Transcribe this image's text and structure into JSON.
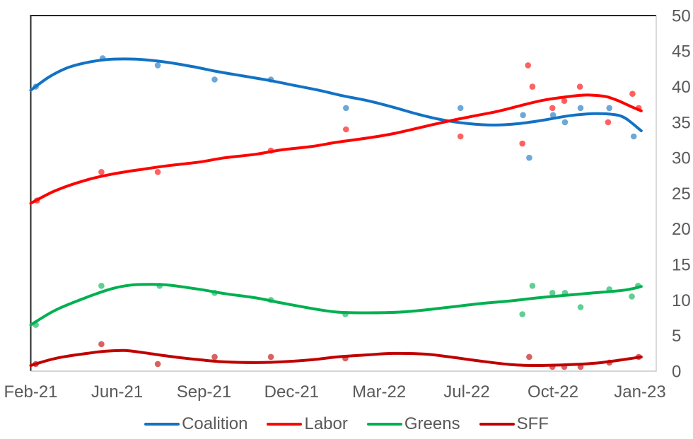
{
  "chart_data": {
    "type": "line",
    "title": "",
    "xlabel": "",
    "ylabel": "",
    "grid": false,
    "legend_position": "bottom",
    "x_axis": {
      "tick_labels": [
        "Feb-21",
        "Jun-21",
        "Sep-21",
        "Dec-21",
        "Mar-22",
        "Jul-22",
        "Oct-22",
        "Jan-23"
      ],
      "tick_positions": [
        0.0,
        0.138,
        0.277,
        0.417,
        0.557,
        0.697,
        0.835,
        0.974
      ],
      "range_note": "x stored as fraction 0-1 across plot width, Feb-21 to Jan-23"
    },
    "y_axis": {
      "min": 0,
      "max": 50,
      "step": 5,
      "tick_labels": [
        "0",
        "5",
        "10",
        "15",
        "20",
        "25",
        "30",
        "35",
        "40",
        "45",
        "50"
      ],
      "side": "right"
    },
    "series": [
      {
        "name": "Coalition",
        "color": "#1272C4",
        "trend": [
          [
            0,
            39.5
          ],
          [
            0.03,
            41.4
          ],
          [
            0.06,
            42.7
          ],
          [
            0.09,
            43.4
          ],
          [
            0.12,
            43.8
          ],
          [
            0.15,
            43.9
          ],
          [
            0.18,
            43.8
          ],
          [
            0.22,
            43.4
          ],
          [
            0.26,
            42.8
          ],
          [
            0.3,
            42.1
          ],
          [
            0.34,
            41.5
          ],
          [
            0.38,
            40.9
          ],
          [
            0.42,
            40.2
          ],
          [
            0.46,
            39.5
          ],
          [
            0.5,
            38.7
          ],
          [
            0.54,
            38.0
          ],
          [
            0.58,
            37.1
          ],
          [
            0.62,
            36.1
          ],
          [
            0.66,
            35.3
          ],
          [
            0.7,
            34.8
          ],
          [
            0.74,
            34.6
          ],
          [
            0.78,
            34.8
          ],
          [
            0.82,
            35.3
          ],
          [
            0.86,
            35.9
          ],
          [
            0.9,
            36.2
          ],
          [
            0.93,
            36.1
          ],
          [
            0.95,
            35.6
          ],
          [
            0.976,
            33.8
          ]
        ],
        "points": [
          [
            0.008,
            40
          ],
          [
            0.115,
            44
          ],
          [
            0.203,
            43
          ],
          [
            0.294,
            41
          ],
          [
            0.384,
            41
          ],
          [
            0.504,
            37
          ],
          [
            0.687,
            37
          ],
          [
            0.787,
            36
          ],
          [
            0.797,
            30
          ],
          [
            0.835,
            36
          ],
          [
            0.854,
            35
          ],
          [
            0.879,
            37
          ],
          [
            0.925,
            37
          ],
          [
            0.964,
            33
          ]
        ]
      },
      {
        "name": "Labor",
        "color": "#FF0000",
        "trend": [
          [
            0,
            23.6
          ],
          [
            0.04,
            25.4
          ],
          [
            0.09,
            26.9
          ],
          [
            0.13,
            27.7
          ],
          [
            0.18,
            28.4
          ],
          [
            0.22,
            28.9
          ],
          [
            0.27,
            29.4
          ],
          [
            0.31,
            30.0
          ],
          [
            0.36,
            30.5
          ],
          [
            0.4,
            31.1
          ],
          [
            0.45,
            31.6
          ],
          [
            0.49,
            32.2
          ],
          [
            0.54,
            32.8
          ],
          [
            0.58,
            33.4
          ],
          [
            0.63,
            34.4
          ],
          [
            0.67,
            35.2
          ],
          [
            0.71,
            35.9
          ],
          [
            0.75,
            36.6
          ],
          [
            0.79,
            37.5
          ],
          [
            0.82,
            38.1
          ],
          [
            0.85,
            38.5
          ],
          [
            0.88,
            38.8
          ],
          [
            0.9,
            38.8
          ],
          [
            0.92,
            38.6
          ],
          [
            0.94,
            38.0
          ],
          [
            0.96,
            37.2
          ],
          [
            0.976,
            36.6
          ]
        ],
        "points": [
          [
            0.01,
            24
          ],
          [
            0.113,
            28
          ],
          [
            0.203,
            28
          ],
          [
            0.384,
            31
          ],
          [
            0.504,
            34
          ],
          [
            0.687,
            33
          ],
          [
            0.786,
            32
          ],
          [
            0.795,
            43
          ],
          [
            0.802,
            40
          ],
          [
            0.834,
            37
          ],
          [
            0.853,
            38
          ],
          [
            0.878,
            40
          ],
          [
            0.923,
            35
          ],
          [
            0.962,
            39
          ],
          [
            0.972,
            37
          ]
        ]
      },
      {
        "name": "Greens",
        "color": "#00B050",
        "trend": [
          [
            0,
            6.5
          ],
          [
            0.04,
            8.6
          ],
          [
            0.09,
            10.4
          ],
          [
            0.13,
            11.6
          ],
          [
            0.16,
            12.1
          ],
          [
            0.19,
            12.2
          ],
          [
            0.22,
            12.1
          ],
          [
            0.27,
            11.5
          ],
          [
            0.31,
            10.9
          ],
          [
            0.36,
            10.3
          ],
          [
            0.4,
            9.6
          ],
          [
            0.45,
            8.8
          ],
          [
            0.49,
            8.3
          ],
          [
            0.54,
            8.2
          ],
          [
            0.59,
            8.3
          ],
          [
            0.63,
            8.6
          ],
          [
            0.67,
            9.0
          ],
          [
            0.72,
            9.5
          ],
          [
            0.77,
            9.9
          ],
          [
            0.81,
            10.3
          ],
          [
            0.86,
            10.7
          ],
          [
            0.9,
            11.0
          ],
          [
            0.95,
            11.4
          ],
          [
            0.976,
            11.9
          ]
        ],
        "points": [
          [
            0.008,
            6.5
          ],
          [
            0.113,
            12
          ],
          [
            0.206,
            12
          ],
          [
            0.294,
            11
          ],
          [
            0.384,
            10
          ],
          [
            0.503,
            8
          ],
          [
            0.786,
            8
          ],
          [
            0.802,
            12
          ],
          [
            0.834,
            11
          ],
          [
            0.854,
            11
          ],
          [
            0.879,
            9
          ],
          [
            0.925,
            11.5
          ],
          [
            0.961,
            10.5
          ],
          [
            0.971,
            12
          ]
        ]
      },
      {
        "name": "SFF",
        "color": "#C00000",
        "trend": [
          [
            0,
            0.8
          ],
          [
            0.04,
            1.8
          ],
          [
            0.09,
            2.5
          ],
          [
            0.12,
            2.8
          ],
          [
            0.15,
            2.9
          ],
          [
            0.18,
            2.6
          ],
          [
            0.22,
            2.1
          ],
          [
            0.27,
            1.6
          ],
          [
            0.31,
            1.3
          ],
          [
            0.36,
            1.2
          ],
          [
            0.4,
            1.3
          ],
          [
            0.45,
            1.6
          ],
          [
            0.49,
            2.0
          ],
          [
            0.54,
            2.3
          ],
          [
            0.58,
            2.5
          ],
          [
            0.63,
            2.4
          ],
          [
            0.67,
            2.0
          ],
          [
            0.72,
            1.4
          ],
          [
            0.77,
            0.9
          ],
          [
            0.81,
            0.8
          ],
          [
            0.86,
            0.9
          ],
          [
            0.9,
            1.1
          ],
          [
            0.93,
            1.4
          ],
          [
            0.976,
            2.0
          ]
        ],
        "points": [
          [
            0.008,
            1
          ],
          [
            0.113,
            3.8
          ],
          [
            0.203,
            1
          ],
          [
            0.294,
            2
          ],
          [
            0.384,
            2
          ],
          [
            0.503,
            1.8
          ],
          [
            0.797,
            2
          ],
          [
            0.834,
            0.6
          ],
          [
            0.853,
            0.6
          ],
          [
            0.879,
            0.6
          ],
          [
            0.925,
            1.2
          ],
          [
            0.972,
            2
          ]
        ]
      }
    ]
  },
  "colors": {
    "background": "#FFFFFF",
    "axis_text": "#595959",
    "border_dark": "#262626",
    "border_light": "#C9C9C9"
  }
}
